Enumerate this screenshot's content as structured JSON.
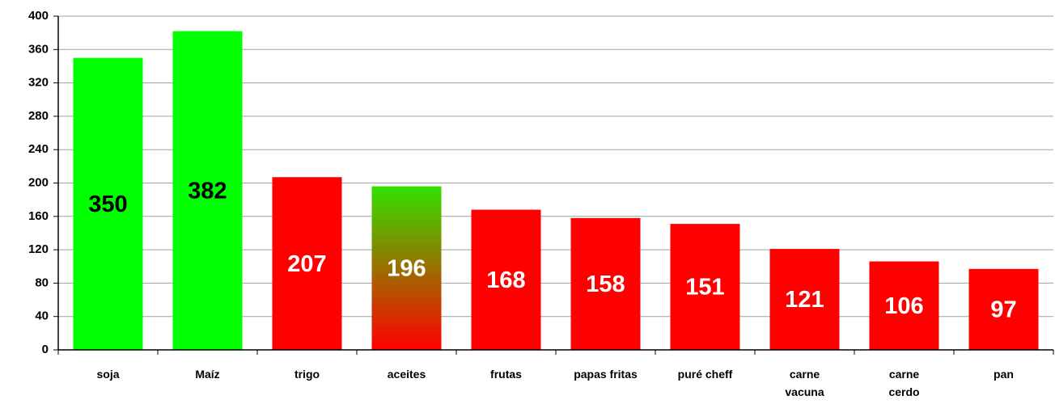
{
  "chart_data": {
    "type": "bar",
    "categories": [
      "soja",
      "Maíz",
      "trigo",
      "aceites",
      "frutas",
      "papas fritas",
      "puré cheff",
      "carne vacuna",
      "carne cerdo",
      "pan"
    ],
    "values": [
      350,
      382,
      207,
      196,
      168,
      158,
      151,
      121,
      106,
      97
    ],
    "colors": [
      "#00ff00",
      "#00ff00",
      "#ff0000",
      [
        "#33e000",
        "#ff0000"
      ],
      "#ff0000",
      "#ff0000",
      "#ff0000",
      "#ff0000",
      "#ff0000",
      "#ff0000"
    ],
    "label_colors": [
      "#000000",
      "#000000",
      "#ffffff",
      "#ffffff",
      "#ffffff",
      "#ffffff",
      "#ffffff",
      "#ffffff",
      "#ffffff",
      "#ffffff"
    ],
    "ylim": [
      0,
      400
    ],
    "yticks": [
      0,
      40,
      80,
      120,
      160,
      200,
      240,
      280,
      320,
      360,
      400
    ],
    "grid": true
  }
}
